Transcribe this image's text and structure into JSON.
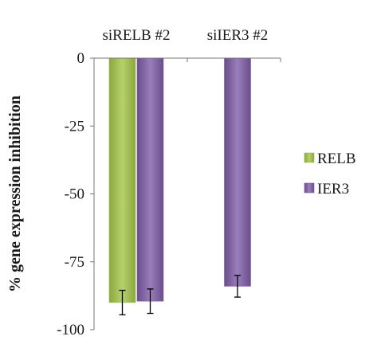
{
  "chart_data": {
    "type": "bar",
    "categories": [
      "siRELB #2",
      "siIER3 #2"
    ],
    "series": [
      {
        "name": "RELB",
        "values": [
          -90,
          null
        ],
        "errors": [
          4.5,
          null
        ],
        "color": "#9cbb4f"
      },
      {
        "name": "IER3",
        "values": [
          -89.5,
          -84
        ],
        "errors": [
          4.5,
          4
        ],
        "color": "#7f5fa0"
      }
    ],
    "ylabel": "% gene expression inhibition",
    "xlabel": "",
    "ylim": [
      -100,
      0
    ],
    "yticks": [
      0,
      -25,
      -50,
      -75,
      -100
    ],
    "category_axis_position": "top",
    "legend_position": "right",
    "grid": false
  }
}
